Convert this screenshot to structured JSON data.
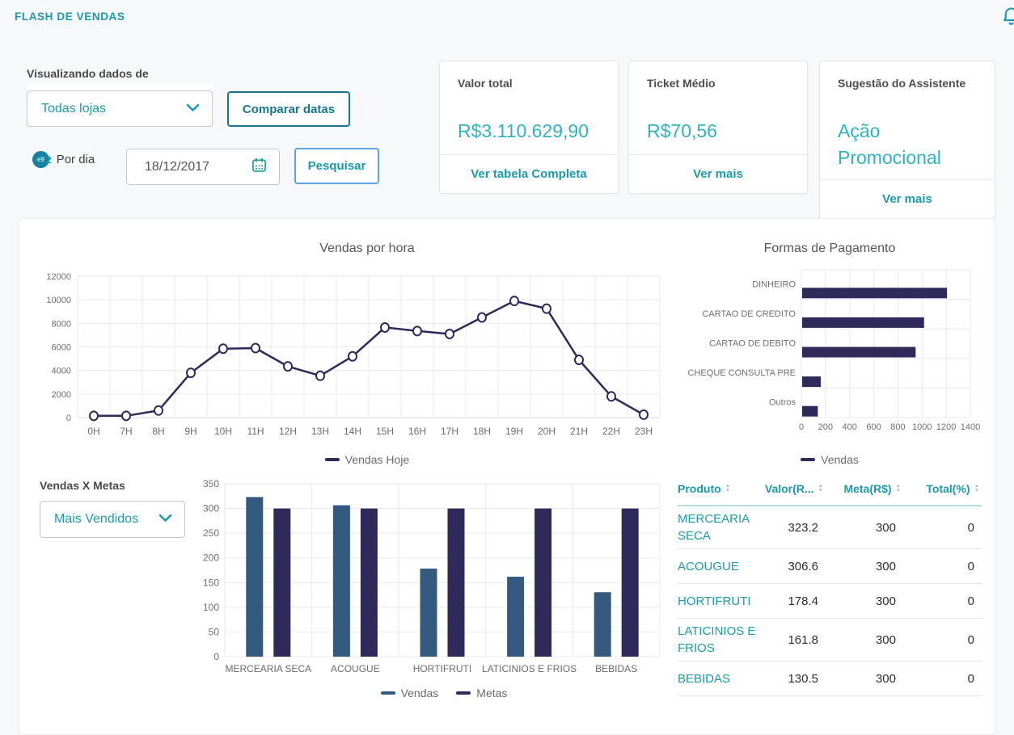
{
  "header": {
    "title": "FLASH DE VENDAS"
  },
  "icons": {
    "notification": "bell-icon",
    "store_dropdown": "chevron-down-icon",
    "goal_dropdown": "chevron-down-icon",
    "date": "calendar-icon",
    "per_day": "per-day-badge-icon",
    "sort": "sort-arrows-icon"
  },
  "colors": {
    "accent_teal": "#1b9aac",
    "value_teal": "#2fb3c3",
    "navy": "#2f2a59",
    "steel_blue": "#355a80",
    "compare_border": "#16768d",
    "search_border": "#5fa2e6"
  },
  "filters": {
    "viewing_label": "Visualizando dados de",
    "store_select_value": "Todas lojas",
    "compare_button": "Comparar datas",
    "per_day_badge_text": "e9",
    "per_day_badge_overflow": "2",
    "per_day_label": "Por dia",
    "date_value": "18/12/2017",
    "search_button": "Pesquisar"
  },
  "cards": [
    {
      "title": "Valor total",
      "value": "R$3.110.629,90",
      "link": "Ver tabela Completa"
    },
    {
      "title": "Ticket Médio",
      "value": "R$70,56",
      "link": "Ver mais"
    },
    {
      "title": "Sugestão do Assistente",
      "value": "Ação Promocional",
      "link": "Ver mais"
    }
  ],
  "goals_section": {
    "label": "Vendas X Metas",
    "select_value": "Mais Vendidos"
  },
  "table": {
    "columns": [
      "Produto",
      "Valor(R...",
      "Meta(R$)",
      "Total(%)"
    ],
    "rows": [
      {
        "produto": "MERCEARIA SECA",
        "valor": "323.2",
        "meta": "300",
        "total": "0"
      },
      {
        "produto": "ACOUGUE",
        "valor": "306.6",
        "meta": "300",
        "total": "0"
      },
      {
        "produto": "HORTIFRUTI",
        "valor": "178.4",
        "meta": "300",
        "total": "0"
      },
      {
        "produto": "LATICINIOS E FRIOS",
        "valor": "161.8",
        "meta": "300",
        "total": "0"
      },
      {
        "produto": "BEBIDAS",
        "valor": "130.5",
        "meta": "300",
        "total": "0"
      }
    ]
  },
  "chart_data": [
    {
      "type": "line",
      "title": "Vendas por hora",
      "x": [
        "0H",
        "7H",
        "8H",
        "9H",
        "10H",
        "11H",
        "12H",
        "13H",
        "14H",
        "15H",
        "16H",
        "17H",
        "18H",
        "19H",
        "20H",
        "21H",
        "22H",
        "23H"
      ],
      "series": [
        {
          "name": "Vendas Hoje",
          "color": "#2f2a59",
          "values": [
            150,
            150,
            600,
            3800,
            5850,
            5900,
            4350,
            3550,
            5200,
            7650,
            7350,
            7100,
            8500,
            9900,
            9250,
            4900,
            1800,
            250
          ]
        }
      ],
      "ylim": [
        0,
        12000
      ],
      "yticks": [
        0,
        2000,
        4000,
        6000,
        8000,
        10000,
        12000
      ],
      "grid": true,
      "legend_position": "bottom",
      "marker": "open-circle"
    },
    {
      "type": "bar",
      "orientation": "horizontal",
      "title": "Formas de Pagamento",
      "categories": [
        "DINHEIRO",
        "CARTAO DE CREDITO",
        "CARTAO DE DEBITO",
        "CHEQUE CONSULTA PRE",
        "Outros"
      ],
      "values": [
        1200,
        1010,
        940,
        155,
        130
      ],
      "legend": "Vendas",
      "color": "#2f2a59",
      "xlim": [
        0,
        1400
      ],
      "xticks": [
        0,
        200,
        400,
        600,
        800,
        1000,
        1200,
        1400
      ],
      "grid": true,
      "legend_position": "bottom"
    },
    {
      "type": "bar",
      "orientation": "vertical",
      "title": "",
      "categories": [
        "MERCEARIA SECA",
        "ACOUGUE",
        "HORTIFRUTI",
        "LATICINIOS E FRIOS",
        "BEBIDAS"
      ],
      "series": [
        {
          "name": "Vendas",
          "color": "#355a80",
          "values": [
            323.2,
            306.6,
            178.4,
            161.8,
            130.5
          ]
        },
        {
          "name": "Metas",
          "color": "#2f2a59",
          "values": [
            300,
            300,
            300,
            300,
            300
          ]
        }
      ],
      "ylim": [
        0,
        350
      ],
      "yticks": [
        0,
        50,
        100,
        150,
        200,
        250,
        300,
        350
      ],
      "grid": true,
      "legend_position": "bottom"
    }
  ]
}
